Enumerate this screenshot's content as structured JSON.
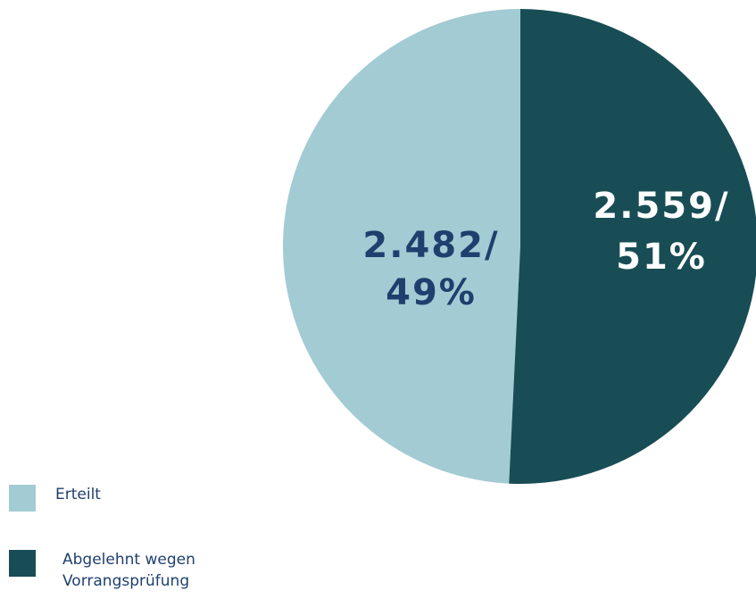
{
  "chart_data": {
    "type": "pie",
    "categories": [
      "Erteilt",
      "Abgelehnt wegen Vorrangsprüfung"
    ],
    "values": [
      2482,
      2559
    ],
    "value_labels": [
      [
        "2.482/",
        "49%"
      ],
      [
        "2.559/",
        "51%"
      ]
    ],
    "colors": [
      "#a3cbd3",
      "#184d55"
    ]
  }
}
